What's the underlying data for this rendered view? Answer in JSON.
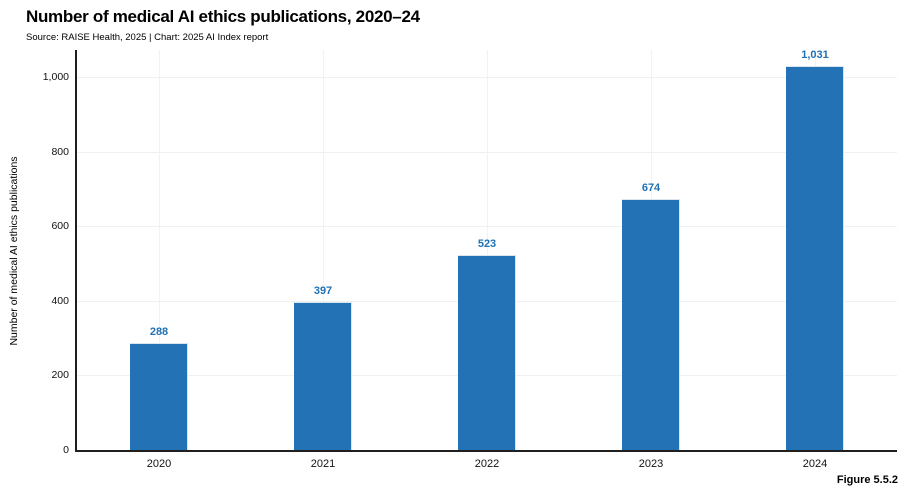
{
  "header": {
    "title": "Number of medical AI ethics publications, 2020–24",
    "source_line": "Source: RAISE Health, 2025 | Chart: 2025 AI Index report"
  },
  "footer": {
    "figure_label": "Figure 5.5.2"
  },
  "colors": {
    "bar": "#2272b5",
    "value_label": "#2272b5",
    "axis": "#1f1f1f",
    "grid": "#eef0f2",
    "background": "#ffffff"
  },
  "chart_data": {
    "type": "bar",
    "title": "Number of medical AI ethics publications, 2020–24",
    "subtitle": "Source: RAISE Health, 2025 | Chart: 2025 AI Index report",
    "categories": [
      "2020",
      "2021",
      "2022",
      "2023",
      "2024"
    ],
    "values": [
      288,
      397,
      523,
      674,
      1031
    ],
    "value_labels": [
      "288",
      "397",
      "523",
      "674",
      "1,031"
    ],
    "xlabel": "",
    "ylabel": "Number of medical AI ethics publications",
    "ylim": [
      0,
      1073
    ],
    "yticks": {
      "values": [
        0,
        200,
        400,
        600,
        800,
        1000
      ],
      "labels": [
        "0",
        "200",
        "400",
        "600",
        "800",
        "1,000"
      ]
    },
    "grid": true,
    "legend": false,
    "bar_color": "#2272b5"
  }
}
